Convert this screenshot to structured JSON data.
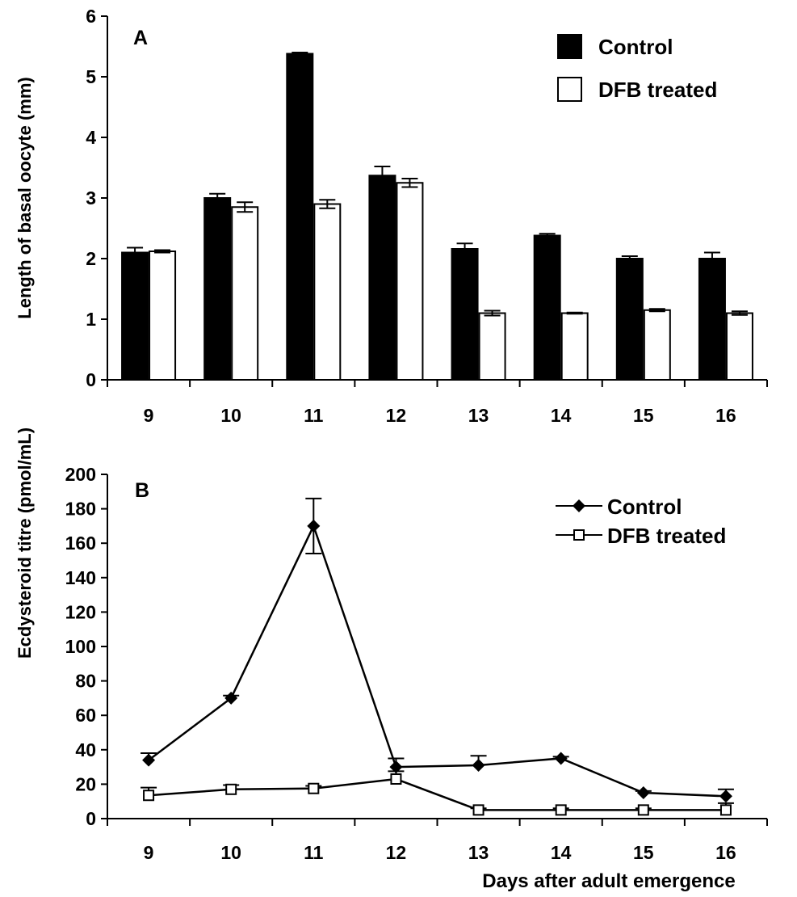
{
  "chart_data": [
    {
      "type": "bar",
      "panel_label": "A",
      "categories": [
        "9",
        "10",
        "11",
        "12",
        "13",
        "14",
        "15",
        "16"
      ],
      "ylabel": "Length of basal oocyte (mm)",
      "xlabel": "",
      "ylim": [
        0,
        6
      ],
      "yticks": [
        "0",
        "1",
        "2",
        "3",
        "4",
        "5",
        "6"
      ],
      "legend_position": "top-right",
      "series": [
        {
          "name": "Control",
          "color": "#000000",
          "values": [
            2.1,
            3.0,
            5.38,
            3.37,
            2.16,
            2.38,
            2.0,
            2.0
          ],
          "errors": [
            0.08,
            0.07,
            0.02,
            0.15,
            0.09,
            0.03,
            0.04,
            0.1
          ]
        },
        {
          "name": "DFB treated",
          "color": "#ffffff",
          "values": [
            2.12,
            2.85,
            2.9,
            3.25,
            1.1,
            1.1,
            1.15,
            1.1
          ],
          "errors": [
            0.02,
            0.08,
            0.07,
            0.07,
            0.04,
            0.01,
            0.02,
            0.03
          ]
        }
      ]
    },
    {
      "type": "line",
      "panel_label": "B",
      "categories": [
        "9",
        "10",
        "11",
        "12",
        "13",
        "14",
        "15",
        "16"
      ],
      "ylabel": "Ecdysteroid titre (pmol/mL)",
      "xlabel": "Days after adult emergence",
      "ylim": [
        0,
        200
      ],
      "yticks": [
        "0",
        "20",
        "40",
        "60",
        "80",
        "100",
        "120",
        "140",
        "160",
        "180",
        "200"
      ],
      "legend_position": "top-right",
      "series": [
        {
          "name": "Control",
          "marker": "diamond",
          "values": [
            34,
            70,
            170,
            30,
            31,
            35,
            15,
            13
          ],
          "errors": [
            4,
            1.5,
            16,
            5,
            5.5,
            1,
            1,
            4
          ]
        },
        {
          "name": "DFB treated",
          "marker": "square",
          "values": [
            13.5,
            17,
            17.5,
            23,
            5,
            5,
            5,
            5
          ],
          "errors": [
            4.5,
            2.5,
            1.5,
            4.5,
            1,
            1,
            1,
            4
          ]
        }
      ]
    }
  ]
}
